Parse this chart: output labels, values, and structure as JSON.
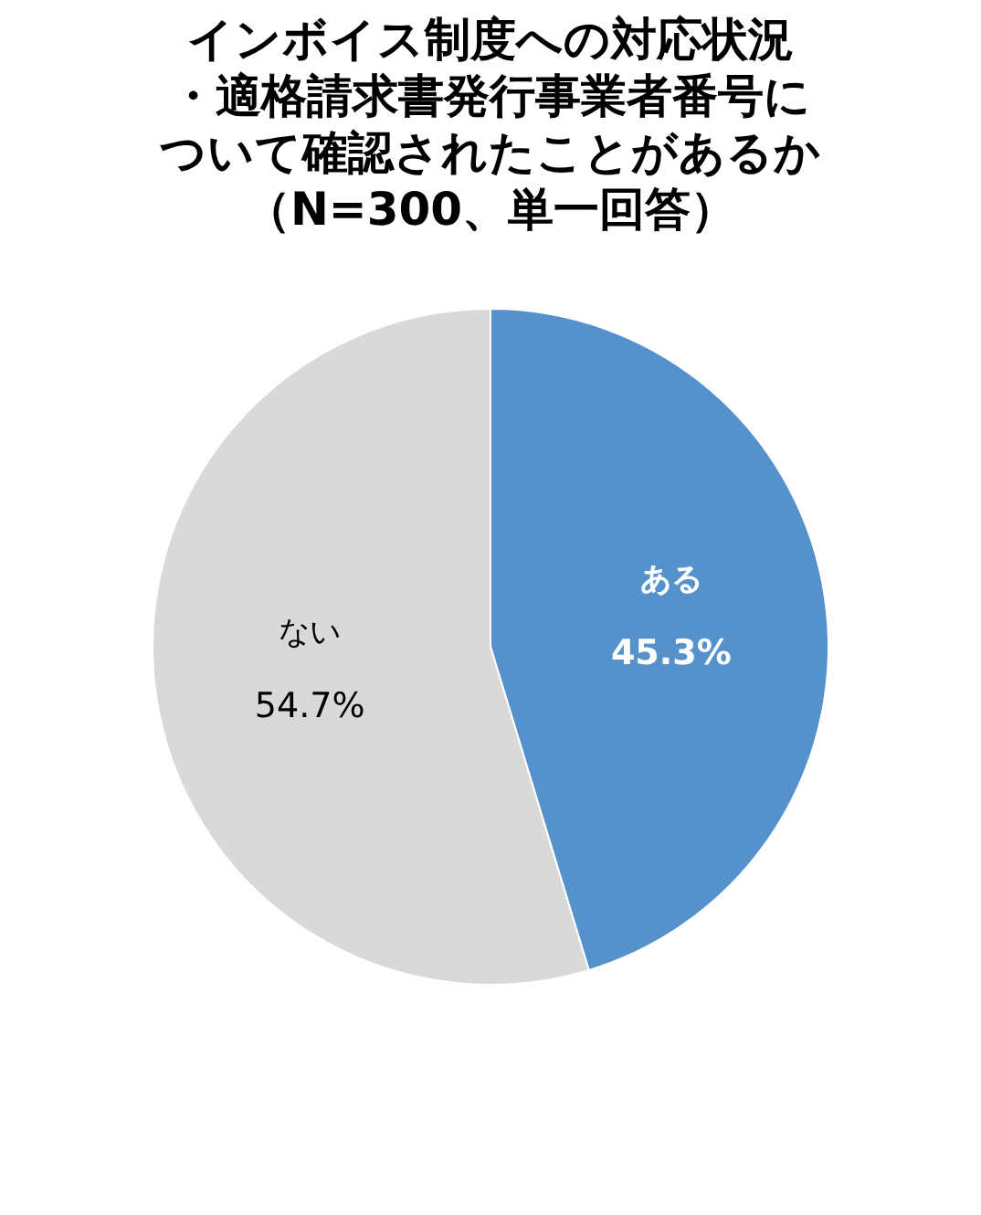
{
  "chart_data": {
    "type": "pie",
    "title": "インボイス制度への対応状況・適格請求書発行事業者番号について確認されたことがあるか（N=300、単一回答）",
    "categories": [
      "ある",
      "ない"
    ],
    "values": [
      45.3,
      54.7
    ],
    "value_labels": [
      "45.3%",
      "54.7%"
    ],
    "colors": [
      "#5592cc",
      "#d9d9d9"
    ]
  }
}
